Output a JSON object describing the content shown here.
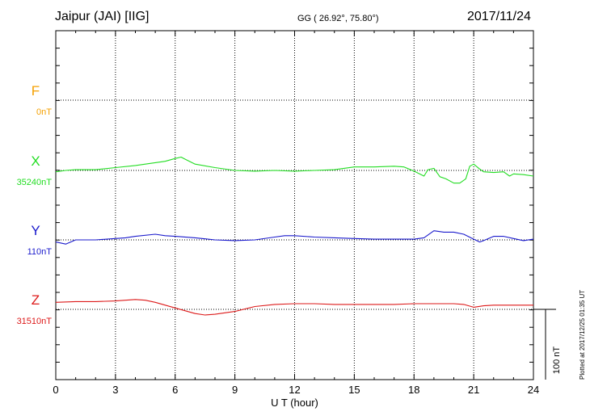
{
  "header": {
    "station": "Jaipur (JAI)  [IIG]",
    "coords": "GG ( 26.92°,  75.80°)",
    "date": "2017/11/24"
  },
  "footer": {
    "plotted": "Plotted at 2017/12/25 01:35 UT"
  },
  "chart_data": {
    "type": "line",
    "xlabel": "U T (hour)",
    "xlim": [
      0,
      24
    ],
    "xticks": [
      0,
      3,
      6,
      9,
      12,
      15,
      18,
      21,
      24
    ],
    "scale_bar": "100 nT",
    "grid": true,
    "series": [
      {
        "name": "F",
        "baseline_label": "0nT",
        "color": "#f5a000",
        "x": [],
        "y": []
      },
      {
        "name": "X",
        "baseline_label": "35240nT",
        "color": "#22dd22",
        "x": [
          0,
          0.5,
          1,
          2,
          3,
          4,
          5,
          5.5,
          6,
          6.3,
          6.5,
          7,
          8,
          9,
          10,
          11,
          12,
          13,
          14,
          15,
          16,
          17,
          17.5,
          18,
          18.5,
          18.7,
          19,
          19.3,
          19.6,
          20,
          20.3,
          20.6,
          20.8,
          21,
          21.3,
          21.5,
          22,
          22.5,
          22.8,
          23,
          23.5,
          24
        ],
        "y": [
          -2,
          0,
          1,
          1,
          4,
          7,
          11,
          13,
          17,
          19,
          16,
          9,
          4,
          0,
          -1,
          0,
          -1,
          0,
          1,
          5,
          5,
          6,
          5,
          -1,
          -8,
          1,
          3,
          -9,
          -12,
          -18,
          -18,
          -12,
          6,
          9,
          2,
          -2,
          -3,
          -2,
          -8,
          -5,
          -6,
          -8
        ]
      },
      {
        "name": "Y",
        "baseline_label": "110nT",
        "color": "#1a1acc",
        "x": [
          0,
          0.5,
          1,
          2,
          3,
          3.5,
          4,
          5,
          5.5,
          6,
          7,
          8,
          9,
          10,
          11,
          11.5,
          12,
          13,
          14,
          15,
          16,
          17,
          18,
          18.5,
          19,
          19.5,
          20,
          20.5,
          21,
          21.3,
          21.5,
          22,
          22.5,
          23,
          23.5,
          24
        ],
        "y": [
          -3,
          -6,
          0,
          0,
          2,
          3,
          5,
          8,
          6,
          5,
          3,
          0,
          -1,
          0,
          4,
          6,
          6,
          4,
          3,
          2,
          1,
          1,
          1,
          3,
          13,
          11,
          11,
          8,
          1,
          -3,
          -1,
          5,
          5,
          2,
          -1,
          1
        ]
      },
      {
        "name": "Z",
        "baseline_label": "31510nT",
        "color": "#dd1a1a",
        "x": [
          0,
          1,
          2,
          3,
          4,
          4.5,
          5,
          6,
          7,
          7.5,
          8,
          9,
          10,
          11,
          12,
          13,
          14,
          15,
          16,
          17,
          18,
          19,
          20,
          20.5,
          21,
          21.5,
          22,
          23,
          24
        ],
        "y": [
          10,
          11,
          11,
          12,
          14,
          13,
          10,
          2,
          -6,
          -8,
          -7,
          -3,
          4,
          7,
          8,
          8,
          7,
          7,
          7,
          7,
          8,
          8,
          8,
          7,
          3,
          5,
          6,
          6,
          6
        ]
      }
    ]
  }
}
